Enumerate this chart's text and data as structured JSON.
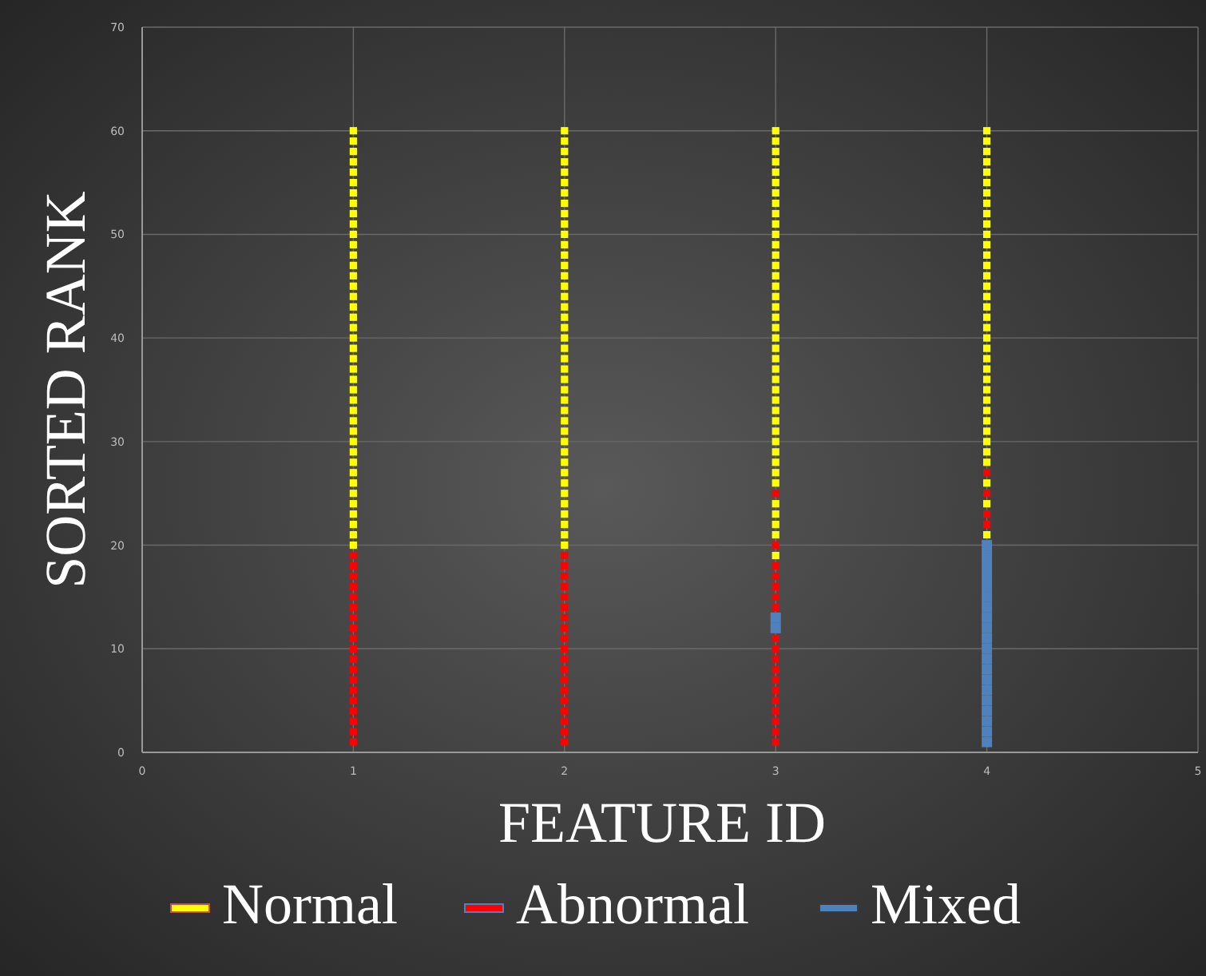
{
  "chart_data": {
    "type": "scatter",
    "xlabel": "FEATURE ID",
    "ylabel": "SORTED RANK",
    "xlim": [
      0,
      5
    ],
    "xticks": [
      0,
      1,
      2,
      3,
      4,
      5
    ],
    "ylim": [
      0,
      70
    ],
    "yticks": [
      0,
      10,
      20,
      30,
      40,
      50,
      60,
      70
    ],
    "grid": true,
    "legend": "bottom",
    "marker": "square",
    "series": [
      {
        "name": "Normal",
        "color": "#ffff00",
        "x": [
          1,
          1,
          1,
          1,
          1,
          1,
          1,
          1,
          1,
          1,
          1,
          1,
          1,
          1,
          1,
          1,
          1,
          1,
          1,
          1,
          1,
          1,
          1,
          1,
          1,
          1,
          1,
          1,
          1,
          1,
          1,
          1,
          1,
          1,
          1,
          1,
          1,
          1,
          1,
          1,
          1,
          2,
          2,
          2,
          2,
          2,
          2,
          2,
          2,
          2,
          2,
          2,
          2,
          2,
          2,
          2,
          2,
          2,
          2,
          2,
          2,
          2,
          2,
          2,
          2,
          2,
          2,
          2,
          2,
          2,
          2,
          2,
          2,
          2,
          2,
          2,
          2,
          2,
          2,
          2,
          2,
          2,
          3,
          3,
          3,
          3,
          3,
          3,
          3,
          3,
          3,
          3,
          3,
          3,
          3,
          3,
          3,
          3,
          3,
          3,
          3,
          3,
          3,
          3,
          3,
          3,
          3,
          3,
          3,
          3,
          3,
          3,
          3,
          3,
          3,
          3,
          3,
          3,
          3,
          3,
          3,
          3,
          4,
          4,
          4,
          4,
          4,
          4,
          4,
          4,
          4,
          4,
          4,
          4,
          4,
          4,
          4,
          4,
          4,
          4,
          4,
          4,
          4,
          4,
          4,
          4,
          4,
          4,
          4,
          4,
          4,
          4,
          4,
          4,
          4,
          4,
          4,
          4
        ],
        "values": [
          20,
          21,
          22,
          23,
          24,
          25,
          26,
          27,
          28,
          29,
          30,
          31,
          32,
          33,
          34,
          35,
          36,
          37,
          38,
          39,
          40,
          41,
          42,
          43,
          44,
          45,
          46,
          47,
          48,
          49,
          50,
          51,
          52,
          53,
          54,
          55,
          56,
          57,
          58,
          59,
          60,
          20,
          21,
          22,
          23,
          24,
          25,
          26,
          27,
          28,
          29,
          30,
          31,
          32,
          33,
          34,
          35,
          36,
          37,
          38,
          39,
          40,
          41,
          42,
          43,
          44,
          45,
          46,
          47,
          48,
          49,
          50,
          51,
          52,
          53,
          54,
          55,
          56,
          57,
          58,
          59,
          60,
          19,
          21,
          22,
          23,
          24,
          26,
          27,
          28,
          29,
          30,
          31,
          32,
          33,
          34,
          35,
          36,
          37,
          38,
          39,
          40,
          41,
          42,
          43,
          44,
          45,
          46,
          47,
          48,
          49,
          50,
          51,
          52,
          53,
          54,
          55,
          56,
          57,
          58,
          59,
          60,
          21,
          24,
          26,
          28,
          29,
          30,
          31,
          32,
          33,
          34,
          35,
          36,
          37,
          38,
          39,
          40,
          41,
          42,
          43,
          44,
          45,
          46,
          47,
          48,
          49,
          50,
          51,
          52,
          53,
          54,
          55,
          56,
          57,
          58,
          59,
          60
        ]
      },
      {
        "name": "Abnormal",
        "color": "#ff0000",
        "x": [
          1,
          1,
          1,
          1,
          1,
          1,
          1,
          1,
          1,
          1,
          1,
          1,
          1,
          1,
          1,
          1,
          1,
          1,
          1,
          2,
          2,
          2,
          2,
          2,
          2,
          2,
          2,
          2,
          2,
          2,
          2,
          2,
          2,
          2,
          2,
          2,
          2,
          2,
          3,
          3,
          3,
          3,
          3,
          3,
          3,
          3,
          3,
          3,
          3,
          3,
          3,
          3,
          3,
          3,
          3,
          3,
          4,
          4,
          4,
          4
        ],
        "values": [
          1,
          2,
          3,
          4,
          5,
          6,
          7,
          8,
          9,
          10,
          11,
          12,
          13,
          14,
          15,
          16,
          17,
          18,
          19,
          1,
          2,
          3,
          4,
          5,
          6,
          7,
          8,
          9,
          10,
          11,
          12,
          13,
          14,
          15,
          16,
          17,
          18,
          19,
          1,
          2,
          3,
          4,
          5,
          6,
          7,
          8,
          9,
          10,
          11,
          14,
          15,
          16,
          17,
          18,
          20,
          25,
          22,
          23,
          25,
          27
        ]
      },
      {
        "name": "Mixed",
        "color": "#4f81bd",
        "x": [
          3,
          3,
          4,
          4,
          4,
          4,
          4,
          4,
          4,
          4,
          4,
          4,
          4,
          4,
          4,
          4,
          4,
          4,
          4,
          4,
          4,
          4
        ],
        "values": [
          12,
          13,
          1,
          2,
          3,
          4,
          5,
          6,
          7,
          8,
          9,
          10,
          11,
          12,
          13,
          14,
          15,
          16,
          17,
          18,
          19,
          20
        ]
      }
    ]
  }
}
